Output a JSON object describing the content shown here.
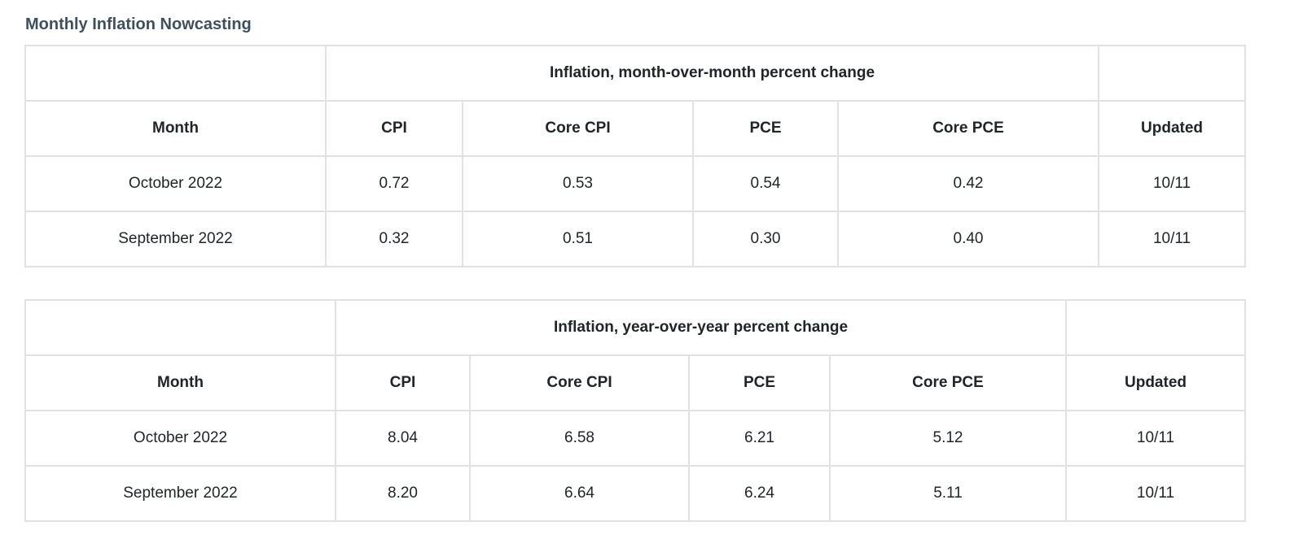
{
  "page_title": "Monthly Inflation Nowcasting",
  "colors": {
    "title": "#3e5060",
    "text": "#212529",
    "border": "#e1e1e1",
    "background": "#ffffff"
  },
  "tables": [
    {
      "group_header": "Inflation, month-over-month percent change",
      "columns": [
        "Month",
        "CPI",
        "Core CPI",
        "PCE",
        "Core PCE",
        "Updated"
      ],
      "rows": [
        [
          "October 2022",
          "0.72",
          "0.53",
          "0.54",
          "0.42",
          "10/11"
        ],
        [
          "September 2022",
          "0.32",
          "0.51",
          "0.30",
          "0.40",
          "10/11"
        ]
      ]
    },
    {
      "group_header": "Inflation, year-over-year percent change",
      "columns": [
        "Month",
        "CPI",
        "Core CPI",
        "PCE",
        "Core PCE",
        "Updated"
      ],
      "rows": [
        [
          "October 2022",
          "8.04",
          "6.58",
          "6.21",
          "5.12",
          "10/11"
        ],
        [
          "September 2022",
          "8.20",
          "6.64",
          "6.24",
          "5.11",
          "10/11"
        ]
      ]
    }
  ]
}
